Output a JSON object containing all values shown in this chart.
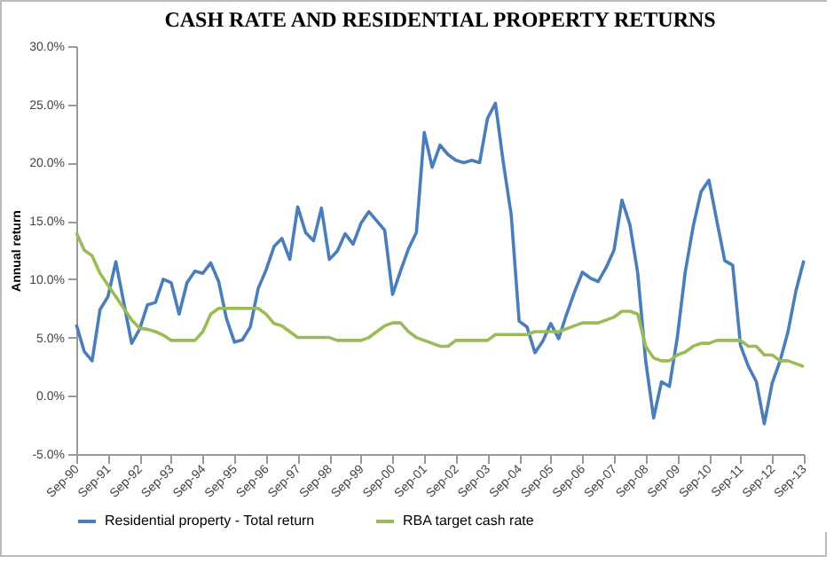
{
  "chart_data": {
    "type": "line",
    "title": "CASH RATE AND RESIDENTIAL PROPERTY RETURNS",
    "ylabel": "Annual return",
    "categories": [
      "Sep-90",
      null,
      null,
      null,
      "Sep-91",
      null,
      null,
      null,
      "Sep-92",
      null,
      null,
      null,
      "Sep-93",
      null,
      null,
      null,
      "Sep-94",
      null,
      null,
      null,
      "Sep-95",
      null,
      null,
      null,
      "Sep-96",
      null,
      null,
      null,
      "Sep-97",
      null,
      null,
      null,
      "Sep-98",
      null,
      null,
      null,
      "Sep-99",
      null,
      null,
      null,
      "Sep-00",
      null,
      null,
      null,
      "Sep-01",
      null,
      null,
      null,
      "Sep-02",
      null,
      null,
      null,
      "Sep-03",
      null,
      null,
      null,
      "Sep-04",
      null,
      null,
      null,
      "Sep-05",
      null,
      null,
      null,
      "Sep-06",
      null,
      null,
      null,
      "Sep-07",
      null,
      null,
      null,
      "Sep-08",
      null,
      null,
      null,
      "Sep-09",
      null,
      null,
      null,
      "Sep-10",
      null,
      null,
      null,
      "Sep-11",
      null,
      null,
      null,
      "Sep-12",
      null,
      null,
      null,
      "Sep-13"
    ],
    "series": [
      {
        "name": "Residential property - Total return",
        "color": "#4a7ebb",
        "values": [
          6.1,
          3.8,
          3.0,
          7.4,
          8.5,
          11.5,
          8,
          4.5,
          5.7,
          7.8,
          8.0,
          10.0,
          9.7,
          7.0,
          9.7,
          10.7,
          10.5,
          11.4,
          9.8,
          6.6,
          4.6,
          4.8,
          5.9,
          9.2,
          10.8,
          12.8,
          13.5,
          11.7,
          16.2,
          14,
          13.3,
          16.1,
          11.7,
          12.4,
          13.9,
          13.0,
          14.8,
          15.8,
          15,
          14.2,
          8.7,
          10.7,
          12.6,
          14,
          22.6,
          19.6,
          21.5,
          20.7,
          20.2,
          20.0,
          20.2,
          20.0,
          23.8,
          25.1,
          20,
          15.5,
          6.4,
          5.9,
          3.7,
          4.7,
          6.2,
          4.9,
          7.0,
          8.9,
          10.6,
          10.1,
          9.8,
          11,
          12.5,
          16.8,
          14.7,
          10.5,
          3,
          -1.9,
          1.2,
          0.8,
          5,
          10.6,
          14.5,
          17.5,
          18.5,
          15,
          11.6,
          11.2,
          4.3,
          2.5,
          1.2,
          -2.4,
          1.1,
          3,
          5.5,
          9,
          11.6
        ]
      },
      {
        "name": "RBA target cash rate",
        "color": "#9bbb59",
        "values": [
          14,
          12.5,
          12,
          10.5,
          9.5,
          8.5,
          7.5,
          6.5,
          5.8,
          5.7,
          5.5,
          5.2,
          4.75,
          4.75,
          4.75,
          4.75,
          5.5,
          7,
          7.5,
          7.5,
          7.5,
          7.5,
          7.5,
          7.5,
          7,
          6.2,
          6,
          5.5,
          5,
          5,
          5,
          5,
          5,
          4.75,
          4.75,
          4.75,
          4.75,
          5,
          5.5,
          6,
          6.25,
          6.25,
          5.5,
          5,
          4.75,
          4.5,
          4.25,
          4.25,
          4.75,
          4.75,
          4.75,
          4.75,
          4.75,
          5.25,
          5.25,
          5.25,
          5.25,
          5.25,
          5.5,
          5.5,
          5.5,
          5.5,
          5.75,
          6,
          6.25,
          6.25,
          6.25,
          6.5,
          6.75,
          7.25,
          7.25,
          7,
          4.25,
          3.25,
          3,
          3,
          3.5,
          3.75,
          4.25,
          4.5,
          4.5,
          4.75,
          4.75,
          4.75,
          4.75,
          4.25,
          4.25,
          3.5,
          3.5,
          3,
          3,
          2.75,
          2.5
        ]
      }
    ],
    "ylim": [
      -5,
      30
    ],
    "yticks": [
      {
        "value": -5,
        "label": "-5.0%"
      },
      {
        "value": 0,
        "label": "0.0%"
      },
      {
        "value": 5,
        "label": "5.0%"
      },
      {
        "value": 10,
        "label": "10.0%"
      },
      {
        "value": 15,
        "label": "15.0%"
      },
      {
        "value": 20,
        "label": "20.0%"
      },
      {
        "value": 25,
        "label": "25.0%"
      },
      {
        "value": 30,
        "label": "30.0%"
      }
    ],
    "legend": "bottom",
    "grid": false,
    "marker": "none",
    "line_style": "solid"
  }
}
